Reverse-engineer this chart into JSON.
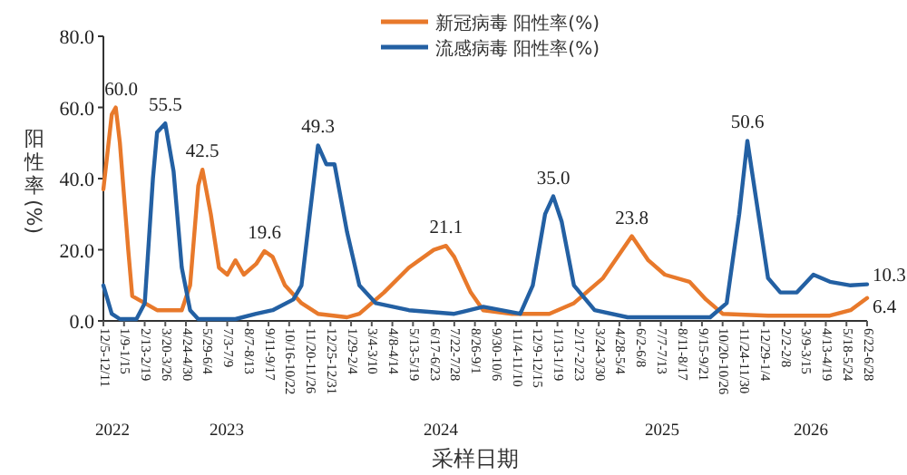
{
  "chart_data": {
    "type": "line",
    "ylabel": "阳性率(%)",
    "xlabel": "采样日期",
    "legend": "top",
    "grid": false,
    "marker": "none",
    "line_style": "solid",
    "xlim": [
      "2022-12-05",
      "2026-06-22"
    ],
    "ylim": [
      0,
      80
    ],
    "yticks": [
      {
        "value": 0,
        "label": "0.0"
      },
      {
        "value": 20,
        "label": "20.0"
      },
      {
        "value": 40,
        "label": "40.0"
      },
      {
        "value": 60,
        "label": "60.0"
      },
      {
        "value": 80,
        "label": "80.0"
      }
    ],
    "xticks": [
      {
        "value": "2022-12-05",
        "label": "12/5-12/11"
      },
      {
        "value": "2023-01-09",
        "label": "1/9-1/15"
      },
      {
        "value": "2023-02-13",
        "label": "2/13-2/19"
      },
      {
        "value": "2023-03-20",
        "label": "3/20-3/26"
      },
      {
        "value": "2023-04-24",
        "label": "4/24-4/30"
      },
      {
        "value": "2023-05-29",
        "label": "5/29-6/4"
      },
      {
        "value": "2023-07-03",
        "label": "7/3-7/9"
      },
      {
        "value": "2023-08-07",
        "label": "8/7-8/13"
      },
      {
        "value": "2023-09-11",
        "label": "9/11-9/17"
      },
      {
        "value": "2023-10-16",
        "label": "10/16-10/22"
      },
      {
        "value": "2023-11-20",
        "label": "11/20-11/26"
      },
      {
        "value": "2023-12-25",
        "label": "12/25-12/31"
      },
      {
        "value": "2024-01-29",
        "label": "1/29-2/4"
      },
      {
        "value": "2024-03-04",
        "label": "3/4-3/10"
      },
      {
        "value": "2024-04-08",
        "label": "4/8-4/14"
      },
      {
        "value": "2024-05-13",
        "label": "5/13-5/19"
      },
      {
        "value": "2024-06-17",
        "label": "6/17-6/23"
      },
      {
        "value": "2024-07-22",
        "label": "7/22-7/28"
      },
      {
        "value": "2024-08-26",
        "label": "8/26-9/1"
      },
      {
        "value": "2024-09-30",
        "label": "9/30-10/6"
      },
      {
        "value": "2024-11-04",
        "label": "11/4-11/10"
      },
      {
        "value": "2024-12-09",
        "label": "12/9-12/15"
      },
      {
        "value": "2025-01-13",
        "label": "1/13-1/19"
      },
      {
        "value": "2025-02-17",
        "label": "2/17-2/23"
      },
      {
        "value": "2025-03-24",
        "label": "3/24-3/30"
      },
      {
        "value": "2025-04-28",
        "label": "4/28-5/4"
      },
      {
        "value": "2025-06-02",
        "label": "6/2-6/8"
      },
      {
        "value": "2025-07-07",
        "label": "7/7-7/13"
      },
      {
        "value": "2025-08-11",
        "label": "8/11-8/17"
      },
      {
        "value": "2025-09-15",
        "label": "9/15-9/21"
      },
      {
        "value": "2025-10-20",
        "label": "10/20-10/26"
      },
      {
        "value": "2025-11-24",
        "label": "11/24-11/30"
      },
      {
        "value": "2025-12-29",
        "label": "12/29-1/4"
      },
      {
        "value": "2026-02-02",
        "label": "2/2-2/8"
      },
      {
        "value": "2026-03-09",
        "label": "3/9-3/15"
      },
      {
        "value": "2026-04-13",
        "label": "4/13-4/19"
      },
      {
        "value": "2026-05-18",
        "label": "5/18-5/24"
      },
      {
        "value": "2026-06-22",
        "label": "6/22-6/28"
      }
    ],
    "annotations": [
      "2022",
      "2023",
      "2024",
      "2025",
      "2026"
    ],
    "series": [
      {
        "name": "新冠病毒 阳性率(%)",
        "color": "#e8792b",
        "x": [
          "2022-12-05",
          "2022-12-19",
          "2022-12-26",
          "2023-01-02",
          "2023-01-16",
          "2023-01-23",
          "2023-02-13",
          "2023-03-06",
          "2023-04-17",
          "2023-05-01",
          "2023-05-15",
          "2023-05-22",
          "2023-06-05",
          "2023-06-19",
          "2023-07-03",
          "2023-07-17",
          "2023-07-31",
          "2023-08-21",
          "2023-09-04",
          "2023-09-18",
          "2023-10-09",
          "2023-11-06",
          "2023-12-04",
          "2024-01-22",
          "2024-02-12",
          "2024-03-25",
          "2024-05-06",
          "2024-06-17",
          "2024-07-08",
          "2024-07-22",
          "2024-08-19",
          "2024-09-09",
          "2024-10-28",
          "2024-12-30",
          "2025-02-10",
          "2025-03-31",
          "2025-05-19",
          "2025-06-16",
          "2025-07-14",
          "2025-08-25",
          "2025-09-22",
          "2025-10-20",
          "2026-01-05",
          "2026-04-20",
          "2026-05-25",
          "2026-06-22"
        ],
        "values": [
          37,
          58,
          60.0,
          50,
          20,
          7,
          5,
          3,
          3,
          10,
          38,
          42.5,
          30,
          15,
          13,
          17,
          13,
          16,
          19.6,
          18,
          10,
          5,
          2,
          1,
          2,
          8,
          15,
          20,
          21.1,
          18,
          8,
          3,
          2,
          2,
          5,
          12,
          23.8,
          17,
          13,
          11,
          6,
          2,
          1.5,
          1.5,
          3,
          6.4
        ],
        "value_labels": [
          null,
          null,
          "60.0",
          null,
          null,
          null,
          null,
          null,
          null,
          null,
          null,
          "42.5",
          null,
          null,
          null,
          null,
          null,
          null,
          "19.6",
          null,
          null,
          null,
          null,
          null,
          null,
          null,
          null,
          null,
          "21.1",
          null,
          null,
          null,
          null,
          null,
          null,
          null,
          "23.8",
          null,
          null,
          null,
          null,
          null,
          null,
          null,
          null,
          "6.4"
        ]
      },
      {
        "name": "流感病毒 阳性率(%)",
        "color": "#2360a3",
        "x": [
          "2022-12-05",
          "2022-12-19",
          "2023-01-02",
          "2023-01-30",
          "2023-02-13",
          "2023-02-27",
          "2023-03-06",
          "2023-03-20",
          "2023-04-03",
          "2023-04-17",
          "2023-05-01",
          "2023-05-15",
          "2023-07-17",
          "2023-08-21",
          "2023-09-18",
          "2023-10-23",
          "2023-11-06",
          "2023-11-20",
          "2023-12-04",
          "2023-12-18",
          "2024-01-01",
          "2024-01-22",
          "2024-02-12",
          "2024-03-11",
          "2024-05-06",
          "2024-07-22",
          "2024-09-09",
          "2024-11-11",
          "2024-12-02",
          "2024-12-23",
          "2025-01-06",
          "2025-01-20",
          "2025-02-10",
          "2025-03-17",
          "2025-05-12",
          "2025-09-29",
          "2025-10-27",
          "2025-11-17",
          "2025-12-01",
          "2025-12-15",
          "2026-01-05",
          "2026-01-26",
          "2026-02-23",
          "2026-03-23",
          "2026-04-20",
          "2026-05-25",
          "2026-06-22"
        ],
        "values": [
          10,
          2,
          0.5,
          0.5,
          5,
          40,
          53,
          55.5,
          42,
          15,
          3,
          0.5,
          0.5,
          2,
          3,
          6,
          10,
          30,
          49.3,
          44,
          44,
          25,
          10,
          5,
          3,
          2,
          4,
          2,
          10,
          30,
          35.0,
          28,
          10,
          3,
          1,
          1,
          5,
          30,
          50.6,
          35,
          12,
          8,
          8,
          13,
          11,
          10,
          10.3
        ],
        "value_labels": [
          null,
          null,
          null,
          null,
          null,
          null,
          null,
          "55.5",
          null,
          null,
          null,
          null,
          null,
          null,
          null,
          null,
          null,
          null,
          "49.3",
          null,
          null,
          null,
          null,
          null,
          null,
          null,
          null,
          null,
          null,
          null,
          "35.0",
          null,
          null,
          null,
          null,
          null,
          null,
          null,
          "50.6",
          null,
          null,
          null,
          null,
          null,
          null,
          null,
          "10.3"
        ]
      }
    ]
  }
}
